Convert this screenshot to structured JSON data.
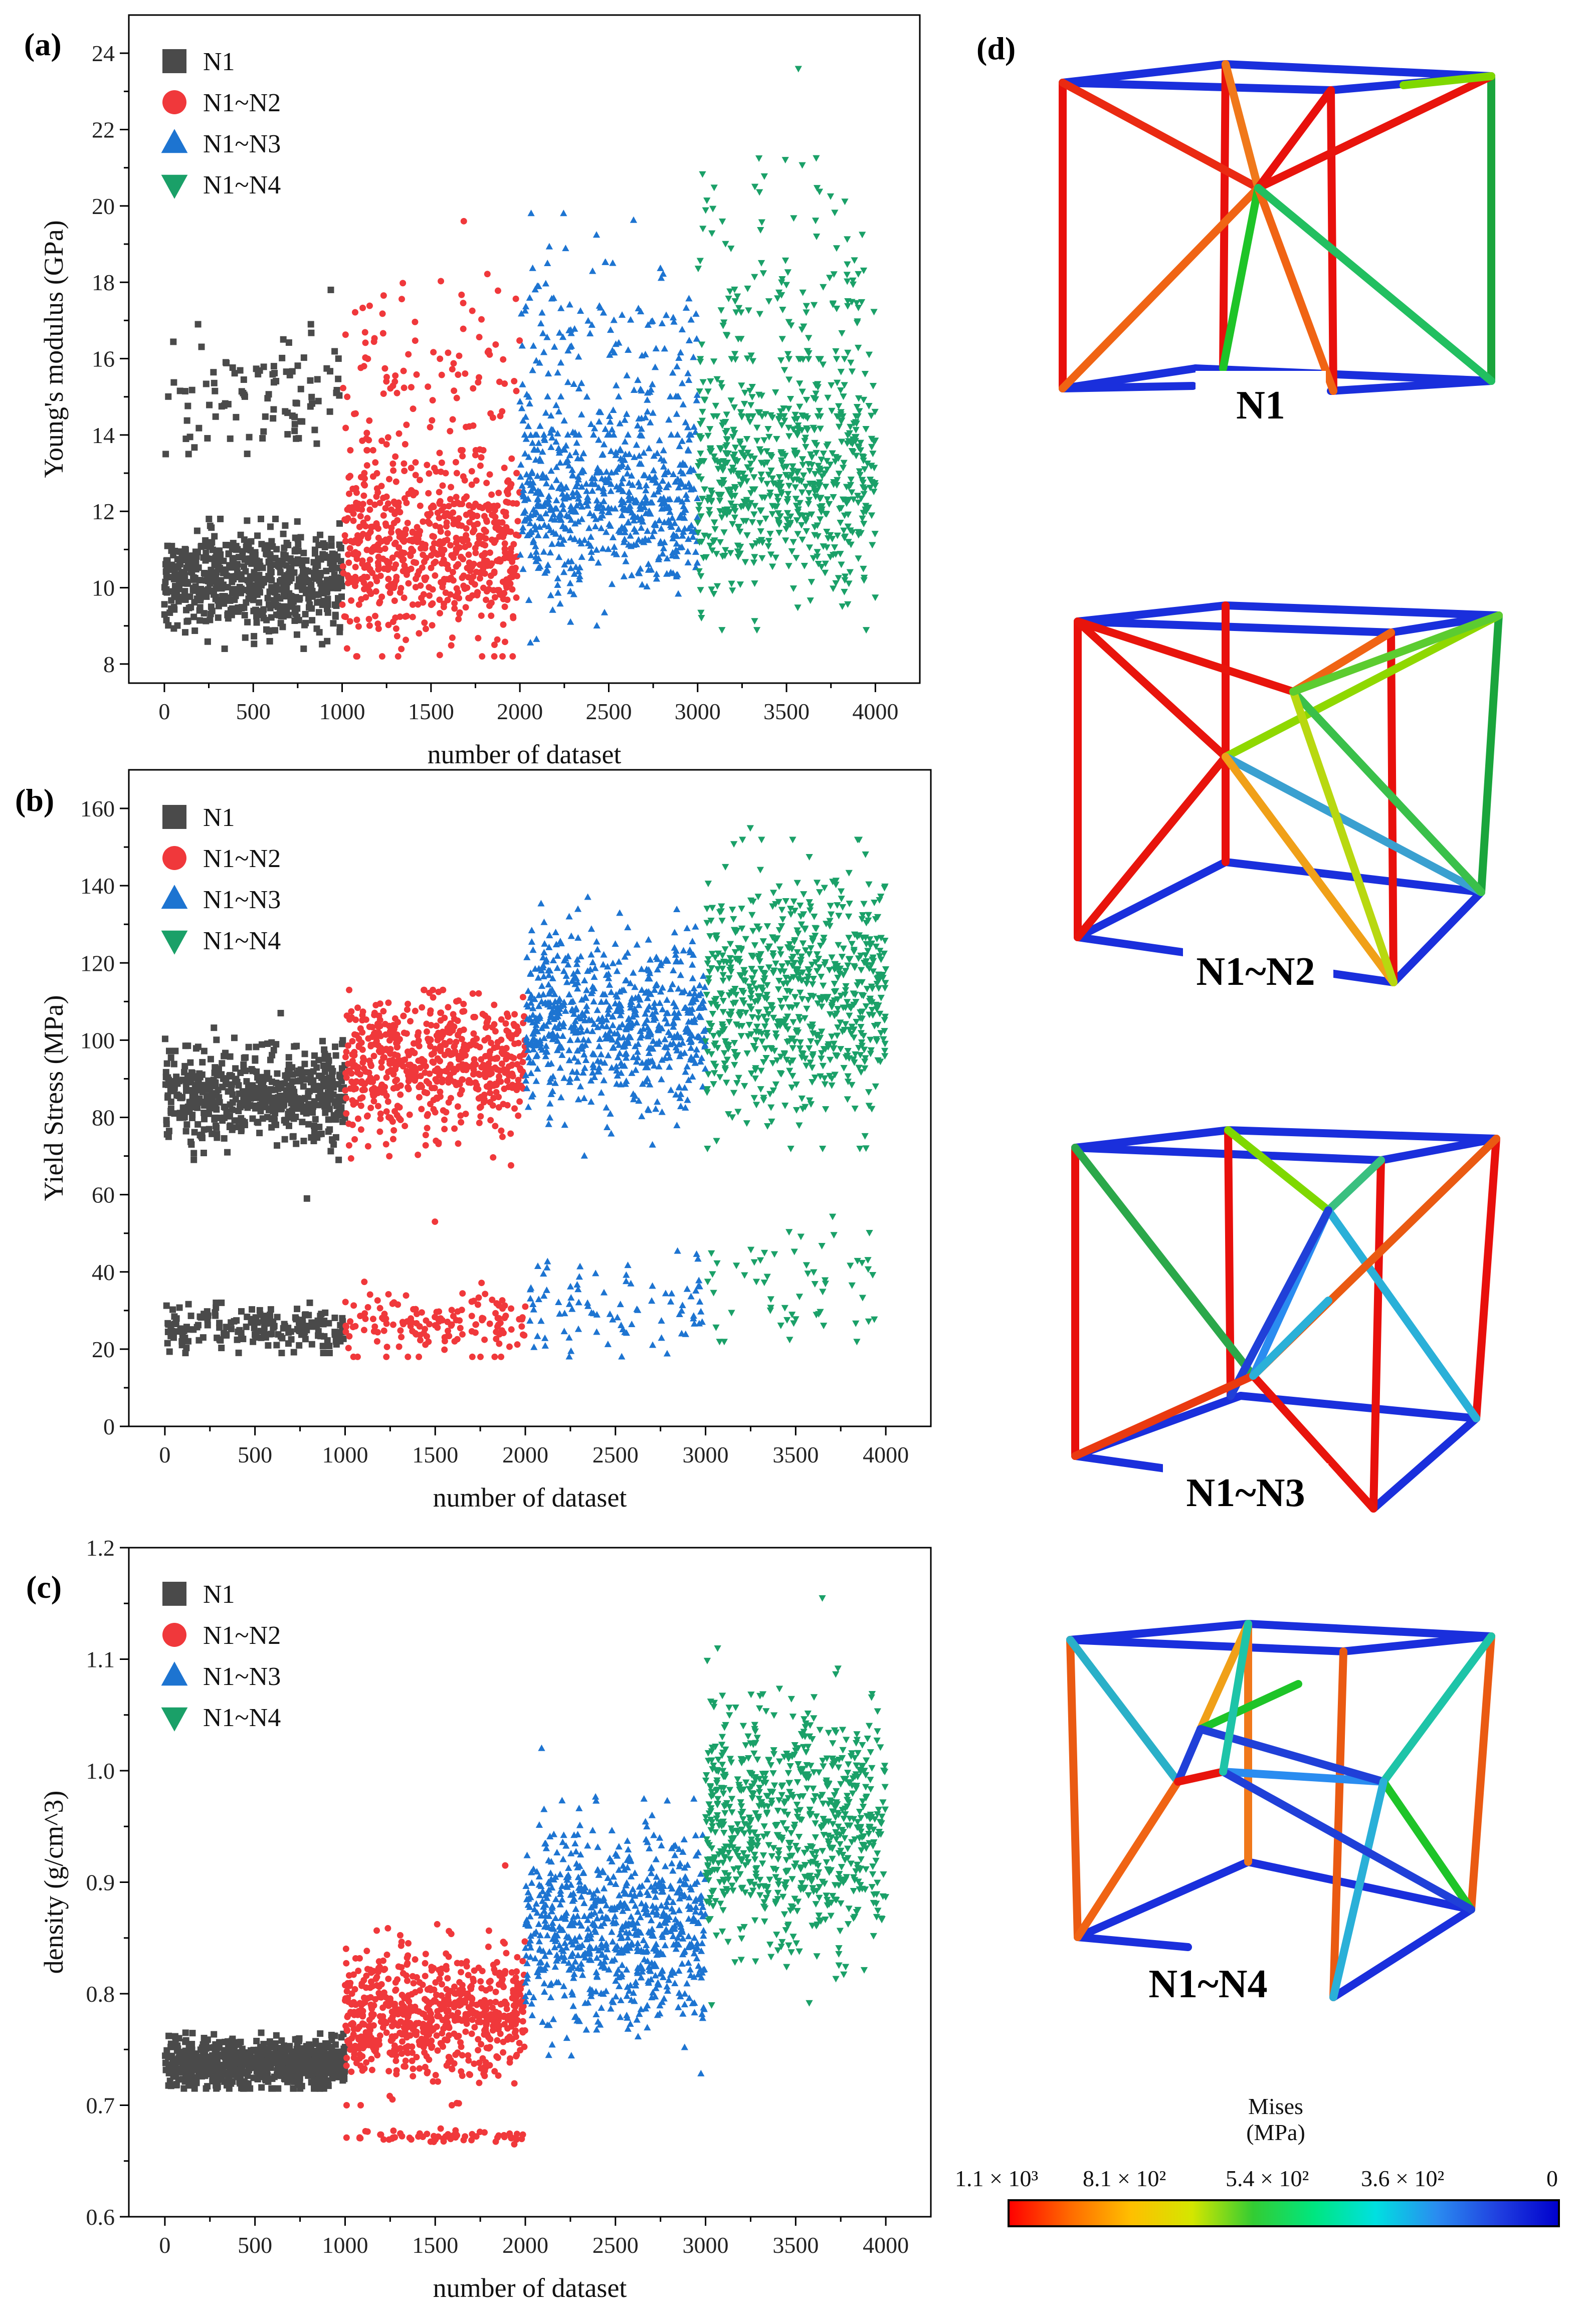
{
  "panels": {
    "a": "(a)",
    "b": "(b)",
    "c": "(c)",
    "d": "(d)"
  },
  "series_colors": {
    "N1": "#4a4a4a",
    "N1~N2": "#f0383b",
    "N1~N3": "#1d74d1",
    "N1~N4": "#1aa068"
  },
  "chart_data": [
    {
      "type": "scatter",
      "panel": "(a)",
      "xlabel": "number of dataset",
      "ylabel": "Young's modulus (GPa)",
      "xlim": [
        -200,
        4250
      ],
      "ylim": [
        7.5,
        25
      ],
      "xticks": [
        0,
        500,
        1000,
        1500,
        2000,
        2500,
        3000,
        3500,
        4000
      ],
      "yticks": [
        8,
        10,
        12,
        14,
        16,
        18,
        20,
        22,
        24
      ],
      "legend": [
        "N1",
        "N1~N2",
        "N1~N3",
        "N1~N4"
      ],
      "legend_position": "top-left",
      "series": [
        {
          "name": "N1",
          "marker": "square",
          "x_range": [
            0,
            1000
          ],
          "clusters": [
            {
              "mean": 10.2,
              "spread": 0.65,
              "fraction": 0.87,
              "min": 8.4,
              "max": 11.8
            },
            {
              "mean": 15.0,
              "spread": 0.8,
              "fraction": 0.13,
              "min": 13.5,
              "max": 16.9
            }
          ],
          "extremes": [
            17.8
          ],
          "count": 1000
        },
        {
          "name": "N1~N2",
          "marker": "circle",
          "x_range": [
            1000,
            2000
          ],
          "clusters": [
            {
              "mean": 11.0,
              "spread": 1.1,
              "fraction": 0.85,
              "min": 8.2,
              "max": 13.6
            },
            {
              "mean": 15.4,
              "spread": 1.4,
              "fraction": 0.15,
              "min": 13.0,
              "max": 18.6
            }
          ],
          "extremes": [
            19.6
          ],
          "count": 1000
        },
        {
          "name": "N1~N3",
          "marker": "triangle-up",
          "x_range": [
            2000,
            3000
          ],
          "clusters": [
            {
              "mean": 12.2,
              "spread": 1.2,
              "fraction": 0.8,
              "min": 8.2,
              "max": 15.0
            },
            {
              "mean": 16.3,
              "spread": 1.6,
              "fraction": 0.2,
              "min": 14.0,
              "max": 19.8
            }
          ],
          "extremes": [],
          "count": 1000
        },
        {
          "name": "N1~N4",
          "marker": "triangle-down",
          "x_range": [
            3000,
            4000
          ],
          "clusters": [
            {
              "mean": 12.8,
              "spread": 1.4,
              "fraction": 0.8,
              "min": 8.9,
              "max": 16.0
            },
            {
              "mean": 17.2,
              "spread": 2.0,
              "fraction": 0.2,
              "min": 14.5,
              "max": 22.0
            }
          ],
          "extremes": [
            23.6
          ],
          "count": 1000
        }
      ]
    },
    {
      "type": "scatter",
      "panel": "(b)",
      "xlabel": "number of dataset",
      "ylabel": "Yield Stress (MPa)",
      "xlim": [
        -200,
        4250
      ],
      "ylim": [
        0,
        170
      ],
      "xticks": [
        0,
        500,
        1000,
        1500,
        2000,
        2500,
        3000,
        3500,
        4000
      ],
      "yticks": [
        0,
        20,
        40,
        60,
        80,
        100,
        120,
        140,
        160
      ],
      "legend": [
        "N1",
        "N1~N2",
        "N1~N3",
        "N1~N4"
      ],
      "legend_position": "top-left",
      "series": [
        {
          "name": "N1",
          "marker": "square",
          "x_range": [
            0,
            1000
          ],
          "clusters": [
            {
              "mean": 86,
              "spread": 6,
              "fraction": 0.75,
              "min": 69,
              "max": 104
            },
            {
              "mean": 25.5,
              "spread": 3,
              "fraction": 0.25,
              "min": 19,
              "max": 32
            }
          ],
          "extremes": [
            59,
            107
          ],
          "count": 1000
        },
        {
          "name": "N1~N2",
          "marker": "circle",
          "x_range": [
            1000,
            2000
          ],
          "clusters": [
            {
              "mean": 94,
              "spread": 8,
              "fraction": 0.8,
              "min": 66,
              "max": 113
            },
            {
              "mean": 27,
              "spread": 4,
              "fraction": 0.2,
              "min": 18,
              "max": 38
            }
          ],
          "extremes": [
            53
          ],
          "count": 1000
        },
        {
          "name": "N1~N3",
          "marker": "triangle-up",
          "x_range": [
            2000,
            3000
          ],
          "clusters": [
            {
              "mean": 105,
              "spread": 11,
              "fraction": 0.88,
              "min": 70,
              "max": 137
            },
            {
              "mean": 31,
              "spread": 6,
              "fraction": 0.12,
              "min": 18,
              "max": 48
            }
          ],
          "extremes": [],
          "count": 1000
        },
        {
          "name": "N1~N4",
          "marker": "triangle-down",
          "x_range": [
            3000,
            4000
          ],
          "clusters": [
            {
              "mean": 112,
              "spread": 15,
              "fraction": 0.92,
              "min": 72,
              "max": 152
            },
            {
              "mean": 37,
              "spread": 7,
              "fraction": 0.08,
              "min": 22,
              "max": 62
            }
          ],
          "extremes": [
            155
          ],
          "count": 1000
        }
      ]
    },
    {
      "type": "scatter",
      "panel": "(c)",
      "xlabel": "number of dataset",
      "ylabel": "density (g/cm^3)",
      "xlim": [
        -200,
        4250
      ],
      "ylim": [
        0.6,
        1.2
      ],
      "xticks": [
        0,
        500,
        1000,
        1500,
        2000,
        2500,
        3000,
        3500,
        4000
      ],
      "yticks": [
        0.6,
        0.7,
        0.8,
        0.9,
        1.0,
        1.1,
        1.2
      ],
      "ytick_labels": [
        "0.6",
        "0.7",
        "0.8",
        "0.9",
        "1.0",
        "1.1",
        "1.2"
      ],
      "legend": [
        "N1",
        "N1~N2",
        "N1~N3",
        "N1~N4"
      ],
      "legend_position": "top-left",
      "series": [
        {
          "name": "N1",
          "marker": "square",
          "x_range": [
            0,
            1000
          ],
          "clusters": [
            {
              "mean": 0.738,
              "spread": 0.011,
              "fraction": 1.0,
              "min": 0.715,
              "max": 0.765
            }
          ],
          "extremes": [],
          "count": 1000
        },
        {
          "name": "N1~N2",
          "marker": "circle",
          "x_range": [
            1000,
            2000
          ],
          "clusters": [
            {
              "mean": 0.78,
              "spread": 0.028,
              "fraction": 0.92,
              "min": 0.7,
              "max": 0.88
            },
            {
              "mean": 0.672,
              "spread": 0.003,
              "fraction": 0.08,
              "min": 0.665,
              "max": 0.68
            }
          ],
          "extremes": [
            0.915
          ],
          "count": 1000
        },
        {
          "name": "N1~N3",
          "marker": "triangle-up",
          "x_range": [
            2000,
            3000
          ],
          "clusters": [
            {
              "mean": 0.86,
              "spread": 0.045,
              "fraction": 1.0,
              "min": 0.72,
              "max": 1.0
            }
          ],
          "extremes": [
            1.02
          ],
          "count": 1000
        },
        {
          "name": "N1~N4",
          "marker": "triangle-down",
          "x_range": [
            3000,
            4000
          ],
          "clusters": [
            {
              "mean": 0.95,
              "spread": 0.055,
              "fraction": 1.0,
              "min": 0.79,
              "max": 1.11
            }
          ],
          "extremes": [
            1.155
          ],
          "count": 1000
        }
      ]
    }
  ],
  "lattices": [
    {
      "label": "N1"
    },
    {
      "label": "N1~N2"
    },
    {
      "label": "N1~N3"
    },
    {
      "label": "N1~N4"
    }
  ],
  "colorbar": {
    "title_line1": "Mises",
    "title_line2": "(MPa)",
    "ticks": [
      "1.1 × 10³",
      "8.1 × 10²",
      "5.4 × 10²",
      "3.6 × 10²",
      "0"
    ],
    "gradient": [
      "#ff0000",
      "#ff6a00",
      "#ffbf00",
      "#d4e600",
      "#33cc33",
      "#00e680",
      "#00e0e0",
      "#2a8cf0",
      "#2040e0",
      "#0000cc"
    ]
  }
}
